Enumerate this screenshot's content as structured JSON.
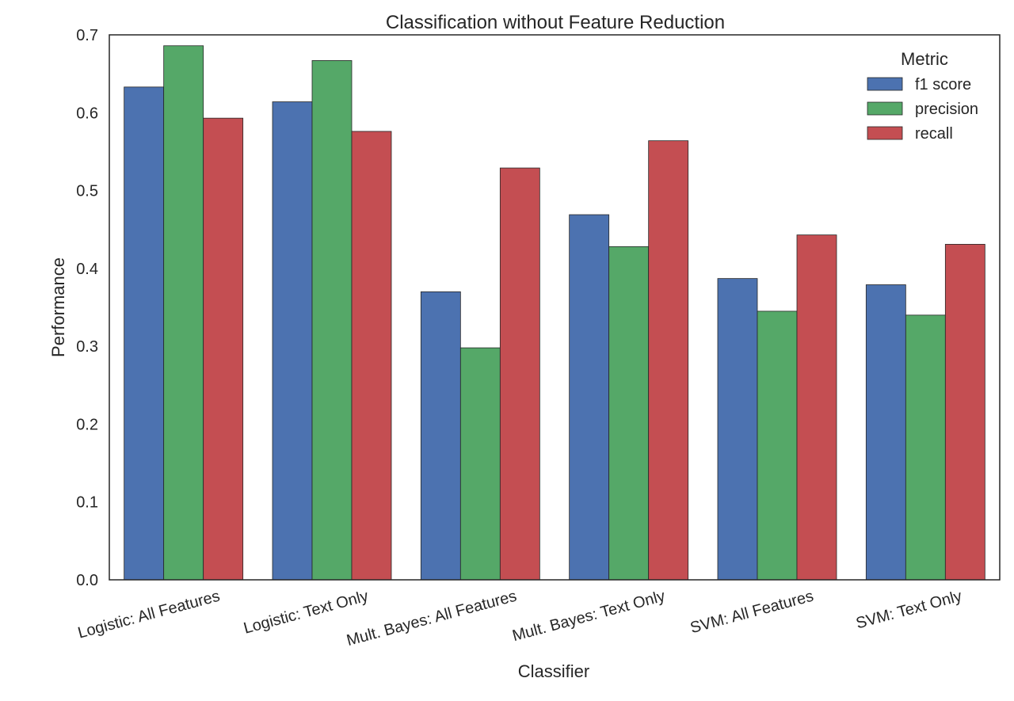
{
  "chart_data": {
    "type": "bar",
    "title": "Classification without Feature Reduction",
    "xlabel": "Classifier",
    "ylabel": "Performance",
    "ylim": [
      0,
      0.7
    ],
    "yticks": [
      "0.0",
      "0.1",
      "0.2",
      "0.3",
      "0.4",
      "0.5",
      "0.6",
      "0.7"
    ],
    "categories": [
      "Logistic: All Features",
      "Logistic: Text Only",
      "Mult. Bayes: All Features",
      "Mult. Bayes: Text Only",
      "SVM: All Features",
      "SVM: Text Only"
    ],
    "series": [
      {
        "name": "f1 score",
        "color": "#4c72b0",
        "values": [
          0.633,
          0.614,
          0.37,
          0.469,
          0.387,
          0.379
        ]
      },
      {
        "name": "precision",
        "color": "#55a868",
        "values": [
          0.686,
          0.667,
          0.298,
          0.428,
          0.345,
          0.34
        ]
      },
      {
        "name": "recall",
        "color": "#c44e52",
        "values": [
          0.593,
          0.576,
          0.529,
          0.564,
          0.443,
          0.431
        ]
      }
    ],
    "legend": {
      "title": "Metric",
      "placement": "top-right"
    },
    "grid": false
  }
}
